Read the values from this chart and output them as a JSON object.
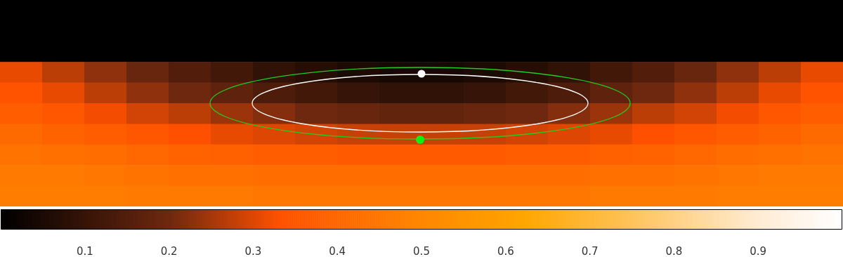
{
  "chart_data": {
    "type": "heatmap",
    "categories": [
      null,
      null,
      null,
      null,
      null,
      null,
      null,
      null,
      null,
      null,
      null,
      null,
      null,
      null,
      null,
      null,
      null,
      null,
      null,
      null
    ],
    "y_categories": [
      null,
      null,
      null,
      null,
      null,
      null,
      null,
      null,
      null,
      null
    ],
    "cells": [
      [
        0,
        0,
        0,
        0,
        0,
        0,
        0,
        0,
        0,
        0,
        0,
        0,
        0,
        0,
        0,
        0,
        0,
        0,
        0,
        0
      ],
      [
        0,
        0,
        0,
        0,
        0,
        0,
        0,
        0,
        0,
        0,
        0,
        0,
        0,
        0,
        0,
        0,
        0,
        0,
        0,
        0
      ],
      [
        0,
        0,
        0,
        0,
        0,
        0,
        0,
        0,
        0,
        0,
        0,
        0,
        0,
        0,
        0,
        0,
        0,
        0,
        0,
        0
      ],
      [
        0.31,
        0.27,
        0.23,
        0.19,
        0.15,
        0.12,
        0.09,
        0.07,
        0.05,
        0.04,
        0.04,
        0.05,
        0.07,
        0.09,
        0.12,
        0.15,
        0.19,
        0.23,
        0.27,
        0.31
      ],
      [
        0.34,
        0.31,
        0.27,
        0.23,
        0.2,
        0.17,
        0.14,
        0.12,
        0.1,
        0.09,
        0.09,
        0.1,
        0.12,
        0.14,
        0.17,
        0.2,
        0.23,
        0.27,
        0.31,
        0.34
      ],
      [
        0.37,
        0.35,
        0.32,
        0.29,
        0.27,
        0.24,
        0.22,
        0.2,
        0.19,
        0.18,
        0.18,
        0.19,
        0.2,
        0.22,
        0.24,
        0.27,
        0.29,
        0.32,
        0.35,
        0.37
      ],
      [
        0.41,
        0.39,
        0.37,
        0.35,
        0.33,
        0.31,
        0.3,
        0.29,
        0.28,
        0.28,
        0.28,
        0.28,
        0.29,
        0.3,
        0.31,
        0.33,
        0.35,
        0.37,
        0.39,
        0.41
      ],
      [
        0.44,
        0.43,
        0.42,
        0.4,
        0.39,
        0.38,
        0.37,
        0.37,
        0.36,
        0.36,
        0.36,
        0.36,
        0.37,
        0.37,
        0.38,
        0.39,
        0.4,
        0.42,
        0.43,
        0.44
      ],
      [
        0.46,
        0.46,
        0.45,
        0.44,
        0.43,
        0.43,
        0.42,
        0.42,
        0.42,
        0.42,
        0.42,
        0.42,
        0.42,
        0.42,
        0.43,
        0.43,
        0.44,
        0.45,
        0.46,
        0.46
      ],
      [
        0.47,
        0.47,
        0.47,
        0.46,
        0.46,
        0.46,
        0.45,
        0.45,
        0.45,
        0.45,
        0.45,
        0.45,
        0.45,
        0.45,
        0.46,
        0.46,
        0.46,
        0.47,
        0.47,
        0.47
      ]
    ],
    "clim": [
      0,
      1
    ],
    "cticks": [
      0.1,
      0.2,
      0.3,
      0.4,
      0.5,
      0.6,
      0.7,
      0.8,
      0.9
    ]
  }
}
